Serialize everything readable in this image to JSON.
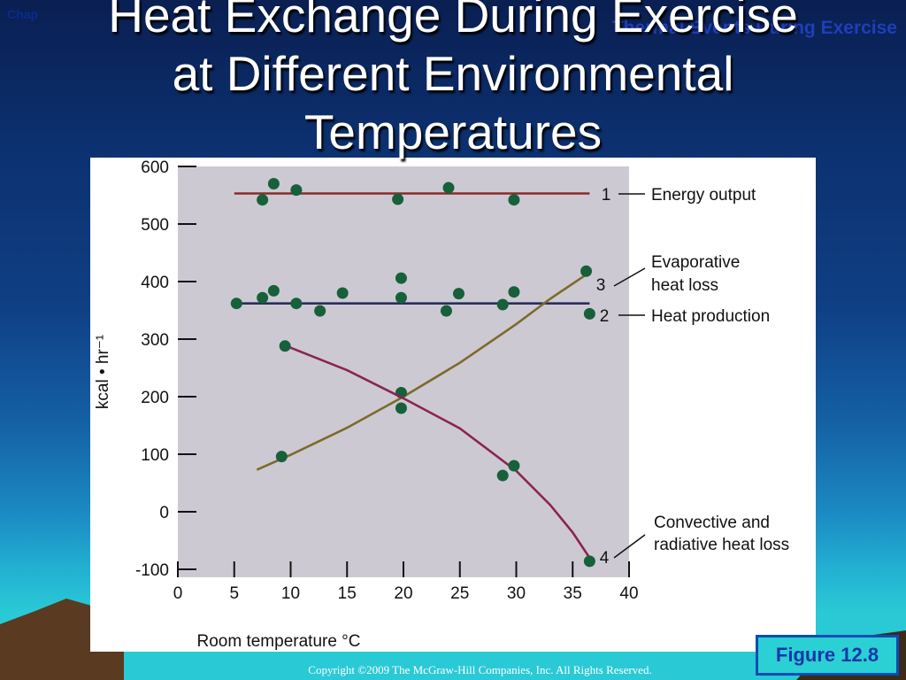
{
  "slide": {
    "chapter_label": "Chap",
    "header_label": "Thermal Events During Exercise",
    "title_lines": [
      "Heat Exchange During Exercise",
      "at Different Environmental",
      "Temperatures"
    ],
    "figure_label": "Figure 12.8",
    "copyright": "Copyright ©2009 The McGraw-Hill Companies, Inc. All Rights Reserved."
  },
  "colors": {
    "plot_bg": "#cdc9d3",
    "energy_output": "#8b2a2a",
    "heat_production": "#2a2d5c",
    "evaporative": "#7d6a2a",
    "convective": "#8a2550",
    "points": "#16603a"
  },
  "chart_data": {
    "type": "scatter",
    "xlabel": "Room temperature °C",
    "ylabel": "kcal • hr⁻¹",
    "xlim": [
      0,
      40
    ],
    "ylim": [
      -100,
      600
    ],
    "xticks": [
      0,
      5,
      10,
      15,
      20,
      25,
      30,
      35,
      40
    ],
    "yticks": [
      -100,
      0,
      100,
      200,
      300,
      400,
      500,
      600
    ],
    "series": [
      {
        "key": "energy",
        "name": "Energy output",
        "number": "1",
        "line": [
          [
            5,
            553
          ],
          [
            36.5,
            553
          ]
        ],
        "points": [
          [
            7.5,
            542
          ],
          [
            8.5,
            570
          ],
          [
            10.5,
            559
          ],
          [
            19.5,
            543
          ],
          [
            24,
            563
          ],
          [
            29.8,
            542
          ]
        ]
      },
      {
        "key": "heat",
        "name": "Heat production",
        "number": "2",
        "line": [
          [
            5,
            362
          ],
          [
            36.5,
            362
          ]
        ],
        "points": [
          [
            5.2,
            362
          ],
          [
            7.5,
            372
          ],
          [
            8.5,
            384
          ],
          [
            10.5,
            362
          ],
          [
            12.6,
            349
          ],
          [
            14.6,
            380
          ],
          [
            19.8,
            406
          ],
          [
            19.8,
            372
          ],
          [
            23.8,
            349
          ],
          [
            24.9,
            379
          ],
          [
            28.8,
            360
          ],
          [
            29.8,
            382
          ],
          [
            36.5,
            344
          ]
        ]
      },
      {
        "key": "evap",
        "name": "Evaporative heat loss",
        "number": "3",
        "line": [
          [
            7,
            73
          ],
          [
            10,
            99
          ],
          [
            15,
            146
          ],
          [
            20,
            200
          ],
          [
            25,
            259
          ],
          [
            30,
            326
          ],
          [
            33,
            370
          ],
          [
            36.2,
            412
          ]
        ],
        "points": [
          [
            9.2,
            96
          ],
          [
            19.8,
            207
          ],
          [
            36.2,
            418
          ]
        ]
      },
      {
        "key": "conv",
        "name": "Convective and radiative heat loss",
        "number": "4",
        "line": [
          [
            9.5,
            289
          ],
          [
            15,
            246
          ],
          [
            20,
            197
          ],
          [
            25,
            145
          ],
          [
            30,
            71
          ],
          [
            33,
            12
          ],
          [
            35,
            -36
          ],
          [
            36.5,
            -80
          ]
        ],
        "points": [
          [
            9.5,
            288
          ],
          [
            19.8,
            180
          ],
          [
            28.8,
            63
          ],
          [
            29.8,
            80
          ],
          [
            36.5,
            -86
          ]
        ]
      }
    ],
    "annotations": [
      {
        "series": "energy",
        "number": "1",
        "text_lines": [
          "Energy output"
        ]
      },
      {
        "series": "evap",
        "number": "3",
        "text_lines": [
          "Evaporative",
          "heat loss"
        ]
      },
      {
        "series": "heat",
        "number": "2",
        "text_lines": [
          "Heat production"
        ]
      },
      {
        "series": "conv",
        "number": "4",
        "text_lines": [
          "Convective and",
          "radiative heat loss"
        ]
      }
    ]
  }
}
